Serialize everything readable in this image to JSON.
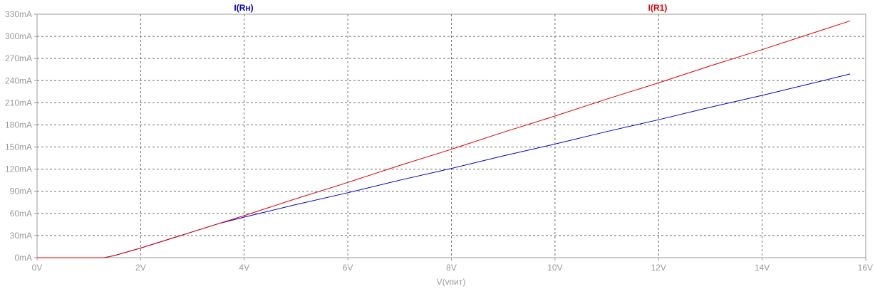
{
  "chart_data": {
    "type": "line",
    "xlabel": "V(vпит)",
    "ylabel": "",
    "xlim": [
      0,
      16
    ],
    "ylim": [
      0,
      330
    ],
    "grid": true,
    "x_ticks": [
      {
        "value": 0,
        "label": "0V"
      },
      {
        "value": 2,
        "label": "2V"
      },
      {
        "value": 4,
        "label": "4V"
      },
      {
        "value": 6,
        "label": "6V"
      },
      {
        "value": 8,
        "label": "8V"
      },
      {
        "value": 10,
        "label": "10V"
      },
      {
        "value": 12,
        "label": "12V"
      },
      {
        "value": 14,
        "label": "14V"
      },
      {
        "value": 16,
        "label": "16V"
      }
    ],
    "y_ticks": [
      {
        "value": 0,
        "label": "0mA"
      },
      {
        "value": 30,
        "label": "30mA"
      },
      {
        "value": 60,
        "label": "60mA"
      },
      {
        "value": 90,
        "label": "90mA"
      },
      {
        "value": 120,
        "label": "120mA"
      },
      {
        "value": 150,
        "label": "150mA"
      },
      {
        "value": 180,
        "label": "180mA"
      },
      {
        "value": 210,
        "label": "210mA"
      },
      {
        "value": 240,
        "label": "240mA"
      },
      {
        "value": 270,
        "label": "270mA"
      },
      {
        "value": 300,
        "label": "300mA"
      },
      {
        "value": 330,
        "label": "330mA"
      }
    ],
    "series": [
      {
        "name": "I(Rн)",
        "color": "#0000cc",
        "x": [
          0,
          1.3,
          1.5,
          2,
          3,
          3.5,
          4,
          5,
          6,
          7,
          8,
          9,
          10,
          11,
          12,
          13,
          14,
          15,
          15.7
        ],
        "y": [
          0,
          0,
          3,
          13,
          35,
          46,
          55,
          72,
          88,
          105,
          121,
          138,
          154,
          171,
          187,
          204,
          220,
          237,
          249
        ]
      },
      {
        "name": "I(R1)",
        "color": "#dd0000",
        "x": [
          0,
          1.3,
          1.5,
          2,
          3,
          4,
          5,
          6,
          7,
          8,
          9,
          10,
          11,
          12,
          13,
          14,
          15,
          15.7
        ],
        "y": [
          0,
          0,
          3,
          13,
          35,
          57,
          80,
          102,
          125,
          147,
          170,
          192,
          215,
          237,
          260,
          282,
          305,
          321
        ]
      }
    ]
  }
}
